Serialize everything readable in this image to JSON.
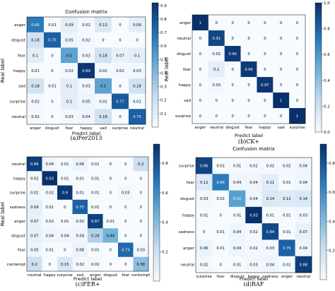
{
  "figure": {
    "panel_captions": [
      "(a)Fer2013",
      "(b)CK+",
      "(c)FER+",
      "(d)RAF"
    ]
  },
  "chart_data": [
    {
      "type": "heatmap",
      "title": "Confusion matrix",
      "caption": "(a)Fer2013",
      "xlabel": "Predict label",
      "ylabel": "Real label",
      "rows": [
        "anger",
        "disgust",
        "fear",
        "happy",
        "sad",
        "surprise",
        "neutral"
      ],
      "cols": [
        "anger",
        "disgust",
        "fear",
        "happy",
        "sad",
        "surprise",
        "neutral"
      ],
      "values": [
        [
          0.66,
          0.01,
          0.09,
          0.02,
          0.13,
          0.0,
          0.09
        ],
        [
          0.18,
          0.75,
          0.05,
          0.02,
          0.0,
          0.0,
          0.0
        ],
        [
          0.1,
          0.0,
          0.5,
          0.03,
          0.18,
          0.07,
          0.1
        ],
        [
          0.01,
          0.0,
          0.02,
          0.89,
          0.02,
          0.02,
          0.03
        ],
        [
          0.18,
          0.01,
          0.1,
          0.03,
          0.5,
          0.0,
          0.18
        ],
        [
          0.02,
          0.0,
          0.1,
          0.05,
          0.02,
          0.77,
          0.01
        ],
        [
          0.02,
          0.0,
          0.03,
          0.04,
          0.18,
          0.0,
          0.75
        ]
      ],
      "colorbar_ticks": [
        "0.1",
        "0.2",
        "0.3",
        "0.4",
        "0.5",
        "0.6",
        "0.7",
        "0.8",
        "0.9"
      ],
      "vmin": 0.0,
      "vmax": 0.92
    },
    {
      "type": "heatmap",
      "title": "",
      "caption": "(b)CK+",
      "xlabel": "Predict label",
      "ylabel": "Real label",
      "rows": [
        "anger",
        "neutral",
        "disgust",
        "fear",
        "happy",
        "sad",
        "surprise"
      ],
      "cols": [
        "anger",
        "neutral",
        "disgust",
        "fear",
        "happy",
        "sad",
        "surprise"
      ],
      "values": [
        [
          1.0,
          0.0,
          0.0,
          0.0,
          0.0,
          0.0,
          0.0
        ],
        [
          0.0,
          0.91,
          0.0,
          0.0,
          0.0,
          0.0,
          0.0
        ],
        [
          0.0,
          0.02,
          0.96,
          0.0,
          0.0,
          0.0,
          0.0
        ],
        [
          0.0,
          0.1,
          0.0,
          0.96,
          0.0,
          0.0,
          0.0
        ],
        [
          0.0,
          0.03,
          0.0,
          0.0,
          0.97,
          0.0,
          0.0
        ],
        [
          0.0,
          0.0,
          0.0,
          0.0,
          0.0,
          1.0,
          0.0
        ],
        [
          0.0,
          0.0,
          0.0,
          0.0,
          0.0,
          0.0,
          1.0
        ]
      ],
      "colorbar_ticks": [
        "0.0",
        "0.2",
        "0.4",
        "0.6",
        "0.8",
        "1.0"
      ],
      "vmin": 0.0,
      "vmax": 1.0
    },
    {
      "type": "heatmap",
      "title": "",
      "caption": "(c)FER+",
      "xlabel": "Predict label",
      "ylabel": "Real label",
      "rows": [
        "neutral",
        "happy",
        "surprise",
        "sadness",
        "anger",
        "disgust",
        "fear",
        "contempt"
      ],
      "cols": [
        "neutral",
        "happy",
        "surprise",
        "sad",
        "anger",
        "disgust",
        "fear",
        "contempt"
      ],
      "values": [
        [
          0.88,
          0.04,
          0.01,
          0.06,
          0.01,
          0.0,
          0.0,
          0.2
        ],
        [
          0.02,
          0.93,
          0.01,
          0.01,
          0.01,
          0.0,
          0.0,
          0.0
        ],
        [
          0.02,
          0.02,
          0.9,
          0.01,
          0.01,
          0.0,
          0.03,
          0.0
        ],
        [
          0.09,
          0.01,
          0.0,
          0.75,
          0.01,
          0.0,
          0.0,
          0.0
        ],
        [
          0.07,
          0.02,
          0.01,
          0.02,
          0.87,
          0.01,
          0.0,
          0.0
        ],
        [
          0.07,
          0.04,
          0.04,
          0.04,
          0.28,
          0.44,
          0.0,
          0.0
        ],
        [
          0.05,
          0.01,
          0.0,
          0.06,
          0.01,
          0.0,
          0.73,
          0.03
        ],
        [
          0.2,
          0.0,
          0.15,
          0.02,
          0.02,
          0.0,
          0.0,
          0.38
        ]
      ],
      "colorbar_ticks": [
        "0.2",
        "0.4",
        "0.6",
        "0.8"
      ],
      "vmin": 0.0,
      "vmax": 0.93
    },
    {
      "type": "heatmap",
      "title": "Confusion matrix",
      "caption": "(d)RAF",
      "xlabel": "Predict label",
      "ylabel": "",
      "rows": [
        "surprise",
        "fear",
        "disgust",
        "happy",
        "sadness",
        "anger",
        "neutral"
      ],
      "cols": [
        "surprise",
        "fear",
        "disgust",
        "happy",
        "sadness",
        "anger",
        "neutral"
      ],
      "values": [
        [
          0.86,
          0.01,
          0.01,
          0.02,
          0.02,
          0.02,
          0.04
        ],
        [
          0.12,
          0.66,
          0.04,
          0.04,
          0.11,
          0.01,
          0.04
        ],
        [
          0.03,
          0.01,
          0.52,
          0.04,
          0.14,
          0.12,
          0.14
        ],
        [
          0.01,
          0.0,
          0.01,
          0.93,
          0.01,
          0.01,
          0.03
        ],
        [
          0.0,
          0.01,
          0.04,
          0.02,
          0.84,
          0.01,
          0.07
        ],
        [
          0.06,
          0.01,
          0.04,
          0.02,
          0.03,
          0.75,
          0.04
        ],
        [
          0.02,
          0.0,
          0.01,
          0.03,
          0.04,
          0.01,
          0.88
        ]
      ],
      "colorbar_ticks": [
        "0.2",
        "0.4",
        "0.6",
        "0.8"
      ],
      "vmin": 0.0,
      "vmax": 0.93
    }
  ]
}
